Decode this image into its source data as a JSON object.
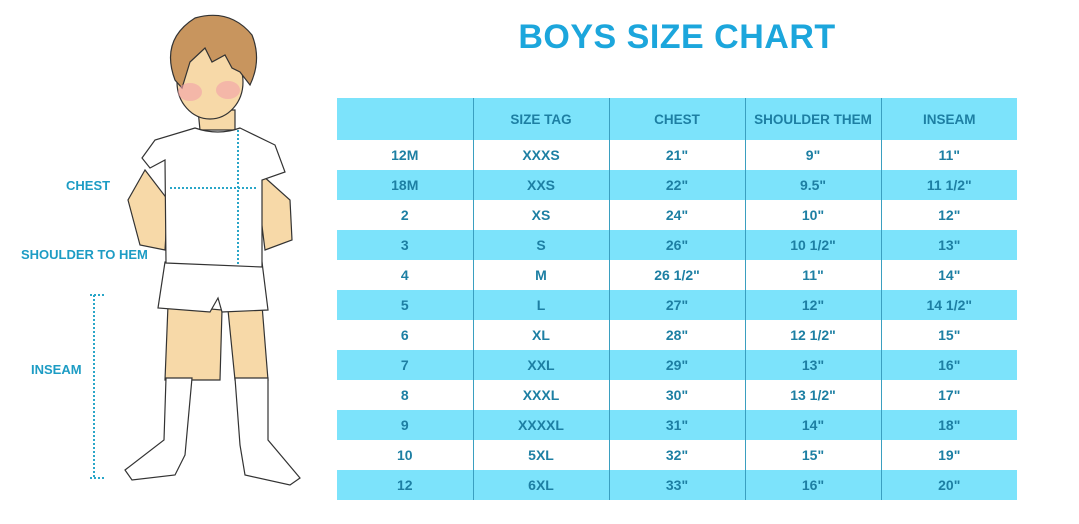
{
  "title": "BOYS SIZE CHART",
  "figure_labels": {
    "chest": "CHEST",
    "shoulder_to_hem": "SHOULDER TO HEM",
    "inseam": "INSEAM"
  },
  "colors": {
    "accent": "#1ca6dc",
    "row_band": "#7ce3fb",
    "text": "#1d7fa3"
  },
  "table": {
    "headers": [
      "",
      "SIZE TAG",
      "CHEST",
      "SHOULDER THEM",
      "INSEAM"
    ],
    "rows": [
      [
        "12M",
        "XXXS",
        "21\"",
        "9\"",
        "11\""
      ],
      [
        "18M",
        "XXS",
        "22\"",
        "9.5\"",
        "11 1/2\""
      ],
      [
        "2",
        "XS",
        "24\"",
        "10\"",
        "12\""
      ],
      [
        "3",
        "S",
        "26\"",
        "10 1/2\"",
        "13\""
      ],
      [
        "4",
        "M",
        "26 1/2\"",
        "11\"",
        "14\""
      ],
      [
        "5",
        "L",
        "27\"",
        "12\"",
        "14 1/2\""
      ],
      [
        "6",
        "XL",
        "28\"",
        "12 1/2\"",
        "15\""
      ],
      [
        "7",
        "XXL",
        "29\"",
        "13\"",
        "16\""
      ],
      [
        "8",
        "XXXL",
        "30\"",
        "13 1/2\"",
        "17\""
      ],
      [
        "9",
        "XXXXL",
        "31\"",
        "14\"",
        "18\""
      ],
      [
        "10",
        "5XL",
        "32\"",
        "15\"",
        "19\""
      ],
      [
        "12",
        "6XL",
        "33\"",
        "16\"",
        "20\""
      ]
    ]
  }
}
